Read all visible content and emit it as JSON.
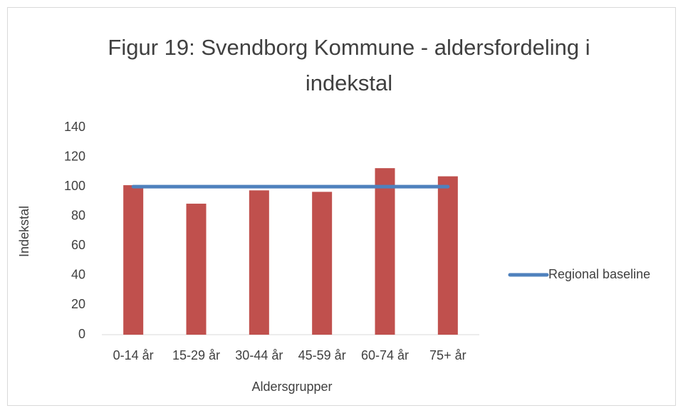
{
  "chart_data": {
    "type": "bar",
    "title": "Figur 19: Svendborg Kommune - aldersfordeling i indekstal",
    "x_label": "Aldersgrupper",
    "y_label": "Indekstal",
    "categories": [
      "0-14 år",
      "15-29 år",
      "30-44 år",
      "45-59 år",
      "60-74 år",
      "75+ år"
    ],
    "series": [
      {
        "type": "bar",
        "color": "#c0504d",
        "values": [
          101,
          88.5,
          97.5,
          96.5,
          112.5,
          107
        ]
      },
      {
        "type": "line",
        "name": "Regional baseline",
        "color": "#4f81bd",
        "values": [
          100,
          100,
          100,
          100,
          100,
          100
        ]
      }
    ],
    "ylim": [
      0,
      140
    ],
    "yticks": [
      0,
      20,
      40,
      60,
      80,
      100,
      120,
      140
    ],
    "grid": false,
    "legend": "right"
  }
}
